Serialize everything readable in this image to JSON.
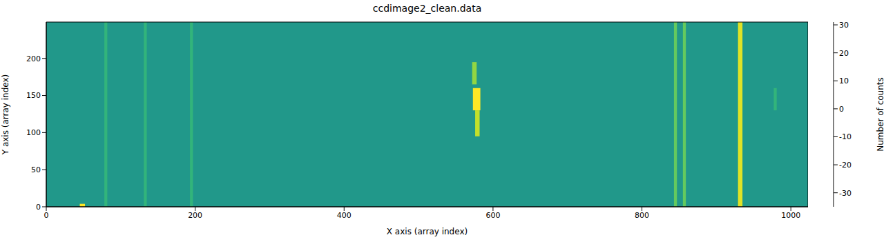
{
  "chart_data": {
    "type": "heatmap",
    "title": "ccdimage2_clean.data",
    "x_label": "X axis (array index)",
    "y_label": "Y axis (array index)",
    "xlim": [
      0,
      1023
    ],
    "xticks": [
      0,
      200,
      400,
      600,
      800,
      1000
    ],
    "ylim": [
      0,
      249
    ],
    "yticks": [
      0,
      50,
      100,
      150,
      200
    ],
    "background": 0,
    "cells": [
      {
        "x": [
          78,
          82
        ],
        "y": [
          0,
          249
        ],
        "value": 8
      },
      {
        "x": [
          131,
          135
        ],
        "y": [
          0,
          249
        ],
        "value": 8
      },
      {
        "x": [
          193,
          197
        ],
        "y": [
          0,
          249
        ],
        "value": 8
      },
      {
        "x": [
          843,
          847
        ],
        "y": [
          0,
          249
        ],
        "value": 15
      },
      {
        "x": [
          855,
          859
        ],
        "y": [
          0,
          249
        ],
        "value": 15
      },
      {
        "x": [
          929,
          935
        ],
        "y": [
          0,
          249
        ],
        "value": 28
      },
      {
        "x": [
          977,
          981
        ],
        "y": [
          130,
          160
        ],
        "value": 8
      },
      {
        "x": [
          572,
          578
        ],
        "y": [
          165,
          195
        ],
        "value": 20
      },
      {
        "x": [
          573,
          583
        ],
        "y": [
          130,
          160
        ],
        "value": 31
      },
      {
        "x": [
          576,
          582
        ],
        "y": [
          95,
          130
        ],
        "value": 25
      },
      {
        "x": [
          45,
          52
        ],
        "y": [
          0,
          4
        ],
        "value": 31
      }
    ],
    "colorbar": {
      "label": "Number of counts",
      "range": [
        -35,
        31
      ],
      "ticks": [
        -30,
        -20,
        -10,
        0,
        10,
        20,
        30
      ]
    }
  }
}
